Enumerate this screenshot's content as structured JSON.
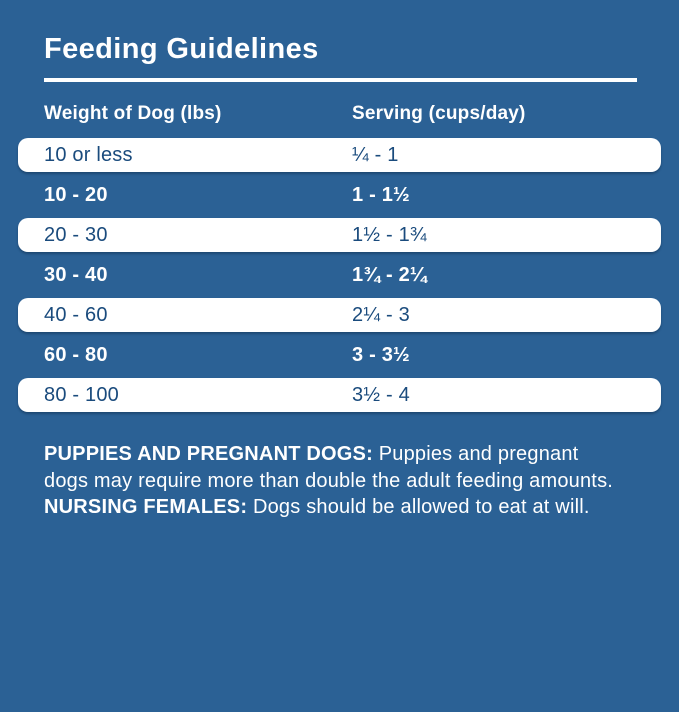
{
  "title": "Feeding Guidelines",
  "table": {
    "headers": [
      "Weight of Dog (lbs)",
      "Serving (cups/day)"
    ],
    "rows": [
      {
        "weight": "10 or less",
        "serving": "¼ - 1"
      },
      {
        "weight": "10 - 20",
        "serving": "1 - 1½"
      },
      {
        "weight": "20 - 30",
        "serving": "1½ - 1¾"
      },
      {
        "weight": "30 - 40",
        "serving": "1¾ - 2¼"
      },
      {
        "weight": "40 - 60",
        "serving": "2¼ - 3"
      },
      {
        "weight": "60 - 80",
        "serving": "3 - 3½"
      },
      {
        "weight": "80 - 100",
        "serving": "3½ - 4"
      }
    ]
  },
  "notes": {
    "puppies_label": "PUPPIES AND PREGNANT DOGS:",
    "puppies_text": " Puppies and pregnant dogs may require more than double the adult feeding amounts. ",
    "nursing_label": "NURSING FEMALES:",
    "nursing_text": " Dogs should be allowed to eat at will."
  },
  "colors": {
    "background": "#2B6195",
    "row_card": "#FFFFFF",
    "text_dark": "#1A4B7D",
    "text_light": "#FFFFFF"
  }
}
